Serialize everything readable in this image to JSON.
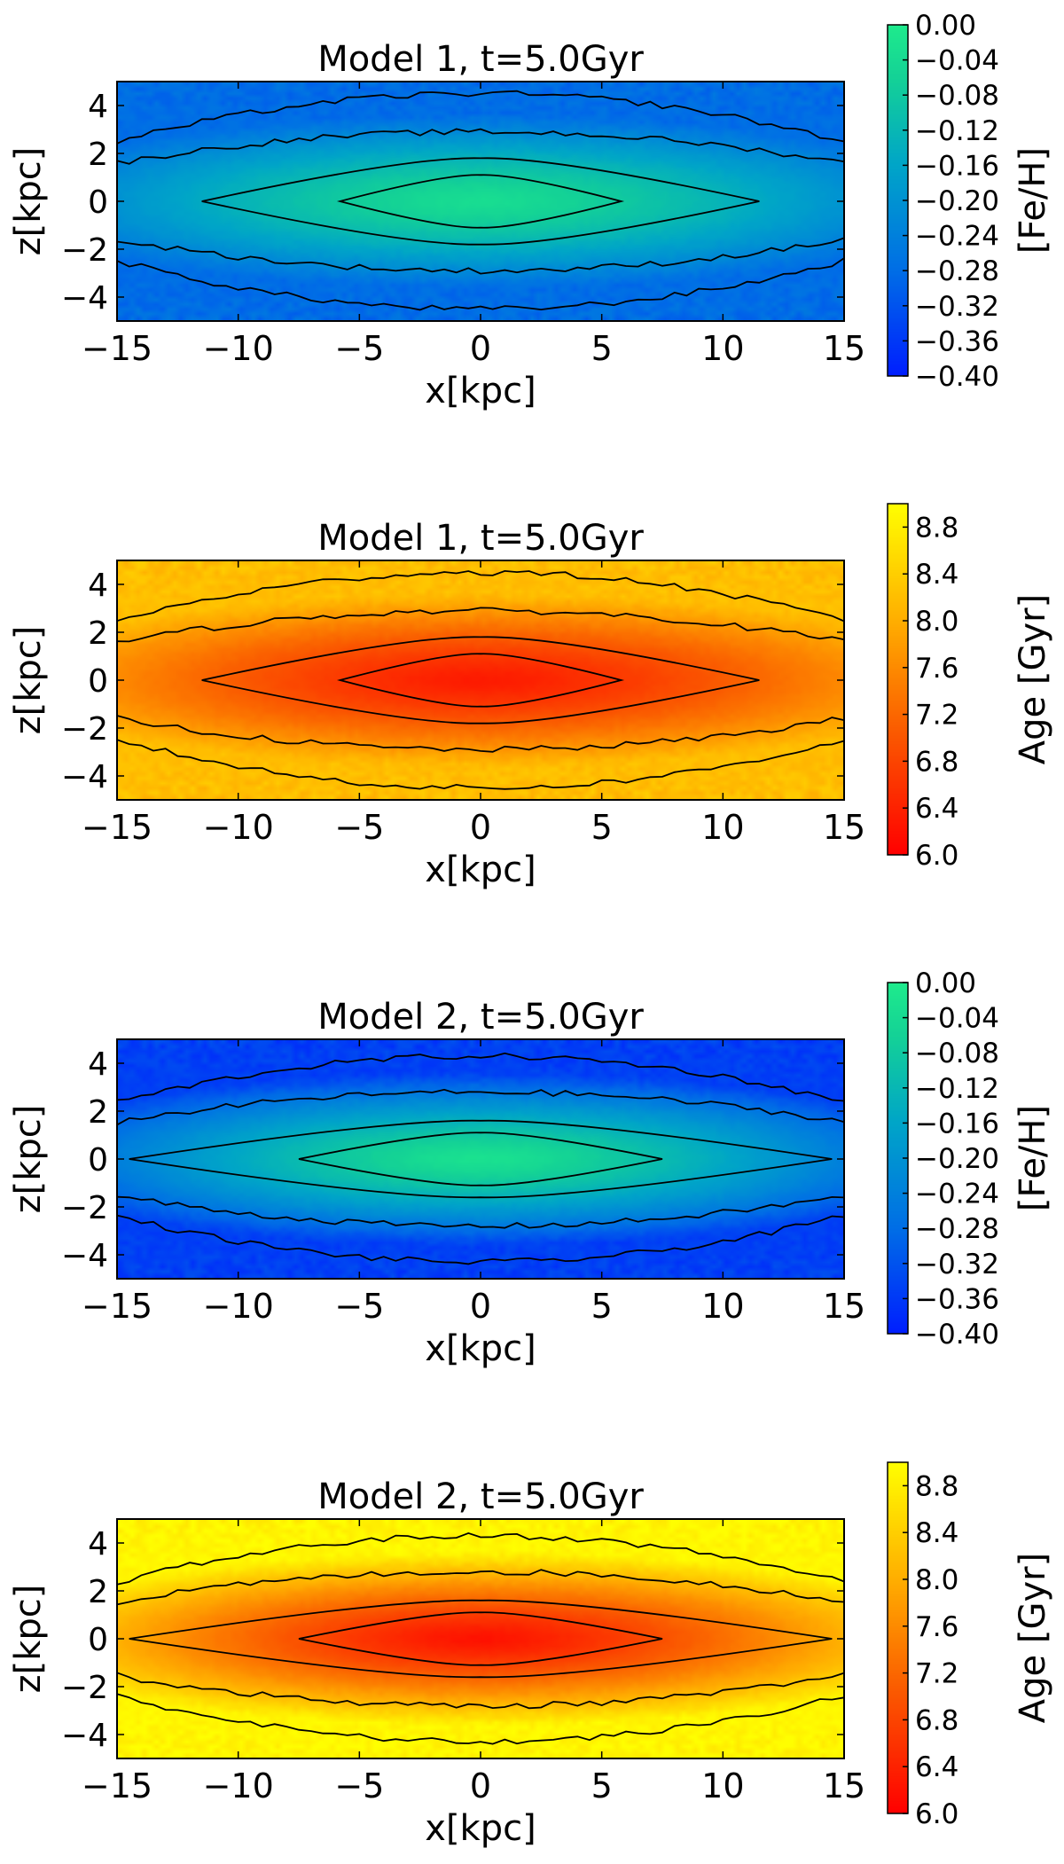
{
  "chart_data": [
    {
      "type": "heatmap",
      "title": "Model 1, t=5.0Gyr",
      "xlabel": "x[kpc]",
      "ylabel": "z[kpc]",
      "xlim": [
        -15,
        15
      ],
      "ylim": [
        -5,
        5
      ],
      "xticks": [
        -15,
        -10,
        -5,
        0,
        5,
        10,
        15
      ],
      "xtick_labels": [
        "−15",
        "−10",
        "−5",
        "0",
        "5",
        "10",
        "15"
      ],
      "yticks": [
        4,
        2,
        0,
        -2,
        -4
      ],
      "ytick_labels": [
        "4",
        "2",
        "0",
        "−2",
        "−4"
      ],
      "colormap": "jet-lower-half",
      "quantity": "feh",
      "center_value": -0.03,
      "edge_value": -0.28,
      "vmin": -0.4,
      "vmax": 0.0,
      "contour_half_widths": [
        5.8,
        11.5,
        15,
        15
      ],
      "contour_half_heights": [
        1.1,
        1.8,
        2.9,
        4.5
      ],
      "colorbar": {
        "label": "[Fe/H]",
        "ticks": [
          0.0,
          -0.04,
          -0.08,
          -0.12,
          -0.16,
          -0.2,
          -0.24,
          -0.28,
          -0.32,
          -0.36,
          -0.4
        ],
        "tick_labels": [
          "0.00",
          "−0.04",
          "−0.08",
          "−0.12",
          "−0.16",
          "−0.20",
          "−0.24",
          "−0.28",
          "−0.32",
          "−0.36",
          "−0.40"
        ]
      }
    },
    {
      "type": "heatmap",
      "title": "Model 1, t=5.0Gyr",
      "xlabel": "x[kpc]",
      "ylabel": "z[kpc]",
      "xlim": [
        -15,
        15
      ],
      "ylim": [
        -5,
        5
      ],
      "xticks": [
        -15,
        -10,
        -5,
        0,
        5,
        10,
        15
      ],
      "xtick_labels": [
        "−15",
        "−10",
        "−5",
        "0",
        "5",
        "10",
        "15"
      ],
      "yticks": [
        4,
        2,
        0,
        -2,
        -4
      ],
      "ytick_labels": [
        "4",
        "2",
        "0",
        "−2",
        "−4"
      ],
      "colormap": "autumn",
      "quantity": "age",
      "center_value": 6.3,
      "edge_value": 8.2,
      "vmin": 6.0,
      "vmax": 9.0,
      "contour_half_widths": [
        5.8,
        11.5,
        15,
        15
      ],
      "contour_half_heights": [
        1.1,
        1.8,
        2.9,
        4.5
      ],
      "colorbar": {
        "label": "Age [Gyr]",
        "ticks": [
          8.8,
          8.4,
          8.0,
          7.6,
          7.2,
          6.8,
          6.4,
          6.0
        ],
        "tick_labels": [
          "8.8",
          "8.4",
          "8.0",
          "7.6",
          "7.2",
          "6.8",
          "6.4",
          "6.0"
        ]
      }
    },
    {
      "type": "heatmap",
      "title": "Model 2, t=5.0Gyr",
      "xlabel": "x[kpc]",
      "ylabel": "z[kpc]",
      "xlim": [
        -15,
        15
      ],
      "ylim": [
        -5,
        5
      ],
      "xticks": [
        -15,
        -10,
        -5,
        0,
        5,
        10,
        15
      ],
      "xtick_labels": [
        "−15",
        "−10",
        "−5",
        "0",
        "5",
        "10",
        "15"
      ],
      "yticks": [
        4,
        2,
        0,
        -2,
        -4
      ],
      "ytick_labels": [
        "4",
        "2",
        "0",
        "−2",
        "−4"
      ],
      "colormap": "jet-lower-half",
      "quantity": "feh",
      "center_value": -0.02,
      "edge_value": -0.35,
      "vmin": -0.4,
      "vmax": 0.0,
      "contour_half_widths": [
        7.5,
        14.5,
        15,
        15
      ],
      "contour_half_heights": [
        1.1,
        1.6,
        2.8,
        4.3
      ],
      "colorbar": {
        "label": "[Fe/H]",
        "ticks": [
          0.0,
          -0.04,
          -0.08,
          -0.12,
          -0.16,
          -0.2,
          -0.24,
          -0.28,
          -0.32,
          -0.36,
          -0.4
        ],
        "tick_labels": [
          "0.00",
          "−0.04",
          "−0.08",
          "−0.12",
          "−0.16",
          "−0.20",
          "−0.24",
          "−0.28",
          "−0.32",
          "−0.36",
          "−0.40"
        ]
      }
    },
    {
      "type": "heatmap",
      "title": "Model 2, t=5.0Gyr",
      "xlabel": "x[kpc]",
      "ylabel": "z[kpc]",
      "xlim": [
        -15,
        15
      ],
      "ylim": [
        -5,
        5
      ],
      "xticks": [
        -15,
        -10,
        -5,
        0,
        5,
        10,
        15
      ],
      "xtick_labels": [
        "−15",
        "−10",
        "−5",
        "0",
        "5",
        "10",
        "15"
      ],
      "yticks": [
        4,
        2,
        0,
        -2,
        -4
      ],
      "ytick_labels": [
        "4",
        "2",
        "0",
        "−2",
        "−4"
      ],
      "colormap": "autumn",
      "quantity": "age",
      "center_value": 6.2,
      "edge_value": 8.9,
      "vmin": 6.0,
      "vmax": 9.0,
      "contour_half_widths": [
        7.5,
        14.5,
        15,
        15
      ],
      "contour_half_heights": [
        1.1,
        1.6,
        2.8,
        4.3
      ],
      "colorbar": {
        "label": "Age [Gyr]",
        "ticks": [
          8.8,
          8.4,
          8.0,
          7.6,
          7.2,
          6.8,
          6.4,
          6.0
        ],
        "tick_labels": [
          "8.8",
          "8.4",
          "8.0",
          "7.6",
          "7.2",
          "6.8",
          "6.4",
          "6.0"
        ]
      }
    }
  ]
}
